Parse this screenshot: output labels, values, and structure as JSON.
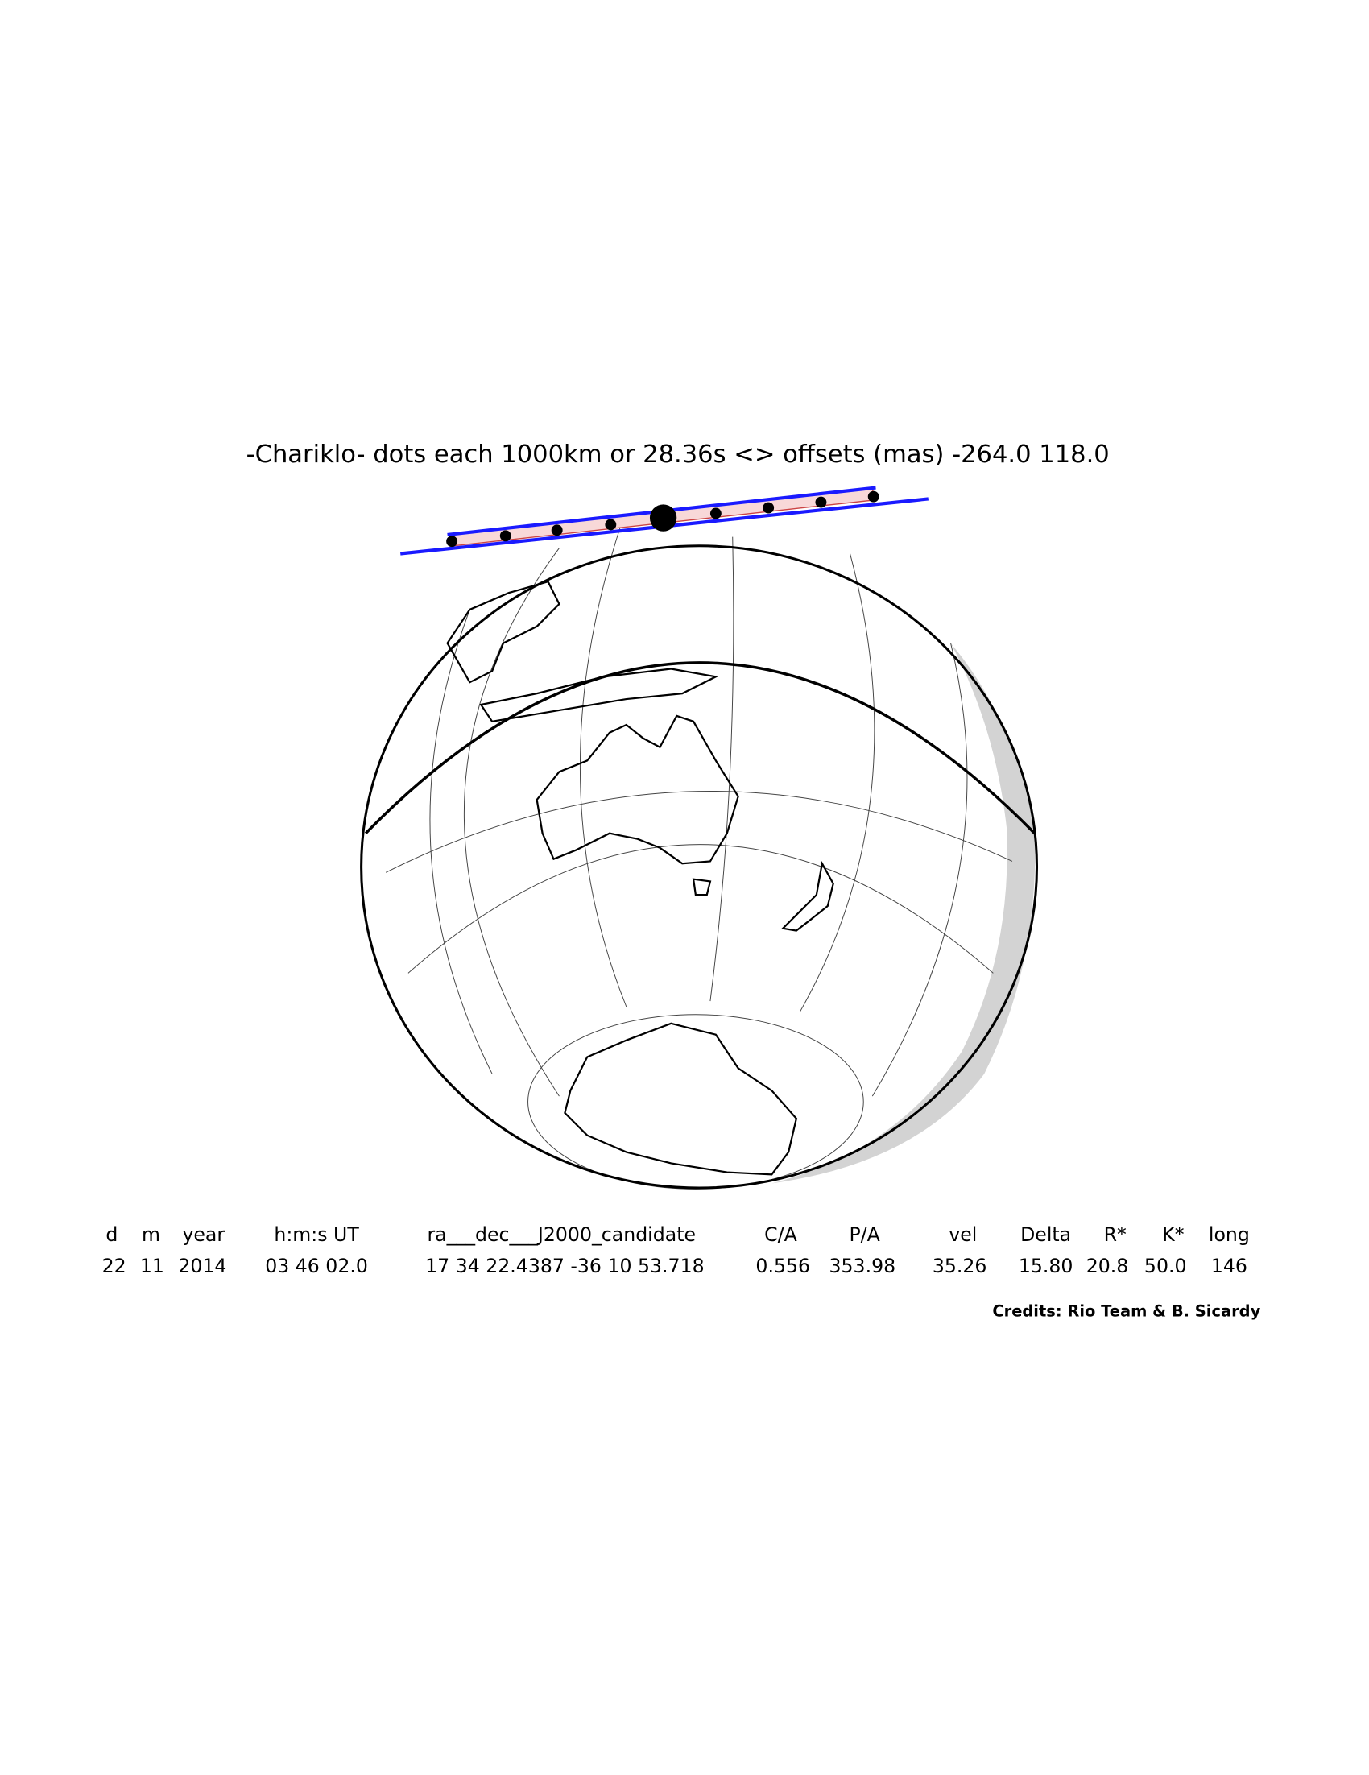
{
  "title": "-Chariklo- dots each 1000km or 28.36s <> offsets (mas) -264.0  118.0",
  "table": {
    "headers": [
      "d",
      "m",
      "year",
      "h:m:s UT",
      "ra___dec___J2000_candidate",
      "C/A",
      "P/A",
      "vel",
      "Delta",
      "R*",
      "K*",
      "long"
    ],
    "rows": [
      [
        "22",
        "11",
        "2014",
        "03 46 02.0",
        "17 34 22.4387 -36 10 53.718",
        "0.556",
        "353.98",
        "35.26",
        "15.80",
        "20.8",
        "50.0",
        "146"
      ]
    ]
  },
  "credits": "Credits: Rio Team & B. Sicardy"
}
